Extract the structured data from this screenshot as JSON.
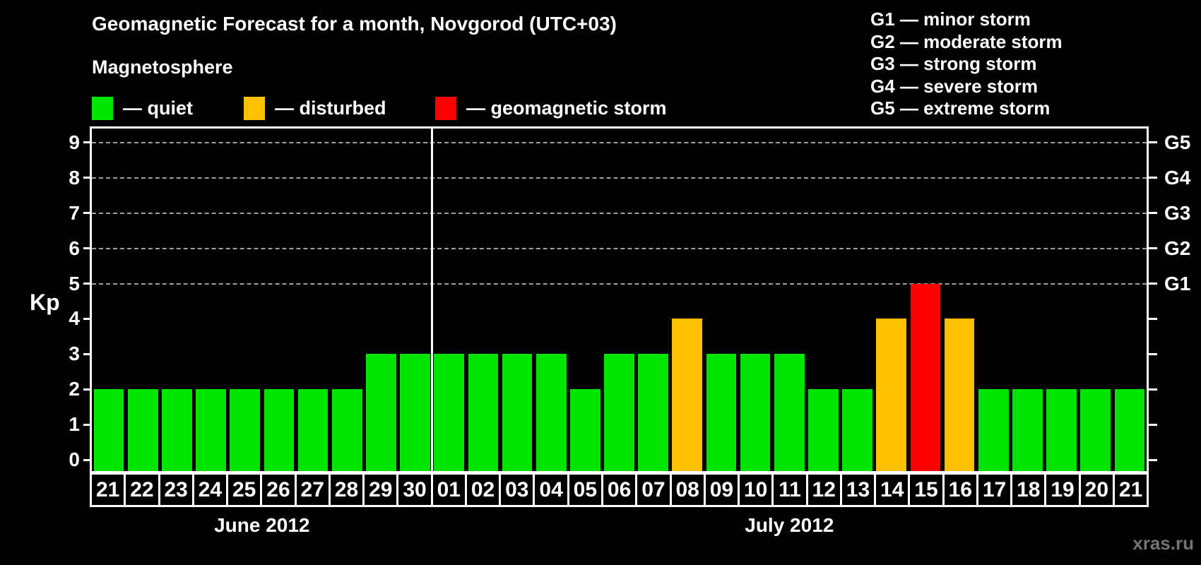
{
  "title": "Geomagnetic Forecast for a month, Novgorod (UTC+03)",
  "legend": {
    "title": "Magnetosphere",
    "items": [
      {
        "name": "quiet",
        "label": "— quiet",
        "color": "#00e400"
      },
      {
        "name": "disturbed",
        "label": "— disturbed",
        "color": "#ffc000"
      },
      {
        "name": "storm",
        "label": "— geomagnetic storm",
        "color": "#ff0000"
      }
    ]
  },
  "g_scale_legend": [
    "G1 — minor storm",
    "G2 — moderate storm",
    "G3 — strong storm",
    "G4 — severe storm",
    "G5 — extreme storm"
  ],
  "watermark": "xras.ru",
  "chart_data": {
    "type": "bar",
    "title": "Geomagnetic Forecast for a month, Novgorod (UTC+03)",
    "ylabel": "Kp",
    "xlabel": "",
    "ylim": [
      0,
      9
    ],
    "grid": "dashed horizontal lines at Kp 5-9 only",
    "y_ticks": [
      0,
      1,
      2,
      3,
      4,
      5,
      6,
      7,
      8,
      9
    ],
    "right_axis": [
      {
        "kp": 5,
        "label": "G1"
      },
      {
        "kp": 6,
        "label": "G2"
      },
      {
        "kp": 7,
        "label": "G3"
      },
      {
        "kp": 8,
        "label": "G4"
      },
      {
        "kp": 9,
        "label": "G5"
      }
    ],
    "gridlines_at": [
      5,
      6,
      7,
      8,
      9
    ],
    "categories": [
      "21",
      "22",
      "23",
      "24",
      "25",
      "26",
      "27",
      "28",
      "29",
      "30",
      "01",
      "02",
      "03",
      "04",
      "05",
      "06",
      "07",
      "08",
      "09",
      "10",
      "11",
      "12",
      "13",
      "14",
      "15",
      "16",
      "17",
      "18",
      "19",
      "20",
      "21"
    ],
    "values": [
      2,
      2,
      2,
      2,
      2,
      2,
      2,
      2,
      3,
      3,
      3,
      3,
      3,
      3,
      2,
      3,
      3,
      4,
      3,
      3,
      3,
      2,
      2,
      4,
      5,
      4,
      2,
      2,
      2,
      2,
      2
    ],
    "statuses": [
      "quiet",
      "quiet",
      "quiet",
      "quiet",
      "quiet",
      "quiet",
      "quiet",
      "quiet",
      "quiet",
      "quiet",
      "quiet",
      "quiet",
      "quiet",
      "quiet",
      "quiet",
      "quiet",
      "quiet",
      "disturbed",
      "quiet",
      "quiet",
      "quiet",
      "quiet",
      "quiet",
      "disturbed",
      "storm",
      "disturbed",
      "quiet",
      "quiet",
      "quiet",
      "quiet",
      "quiet"
    ],
    "colors": {
      "quiet": "#00e400",
      "disturbed": "#ffc000",
      "storm": "#ff0000"
    },
    "month_groups": [
      {
        "label": "June 2012",
        "count": 10
      },
      {
        "label": "July 2012",
        "count": 21
      }
    ],
    "legend_position": "top-left",
    "axis_color": "#ffffff",
    "background": "#000000"
  }
}
